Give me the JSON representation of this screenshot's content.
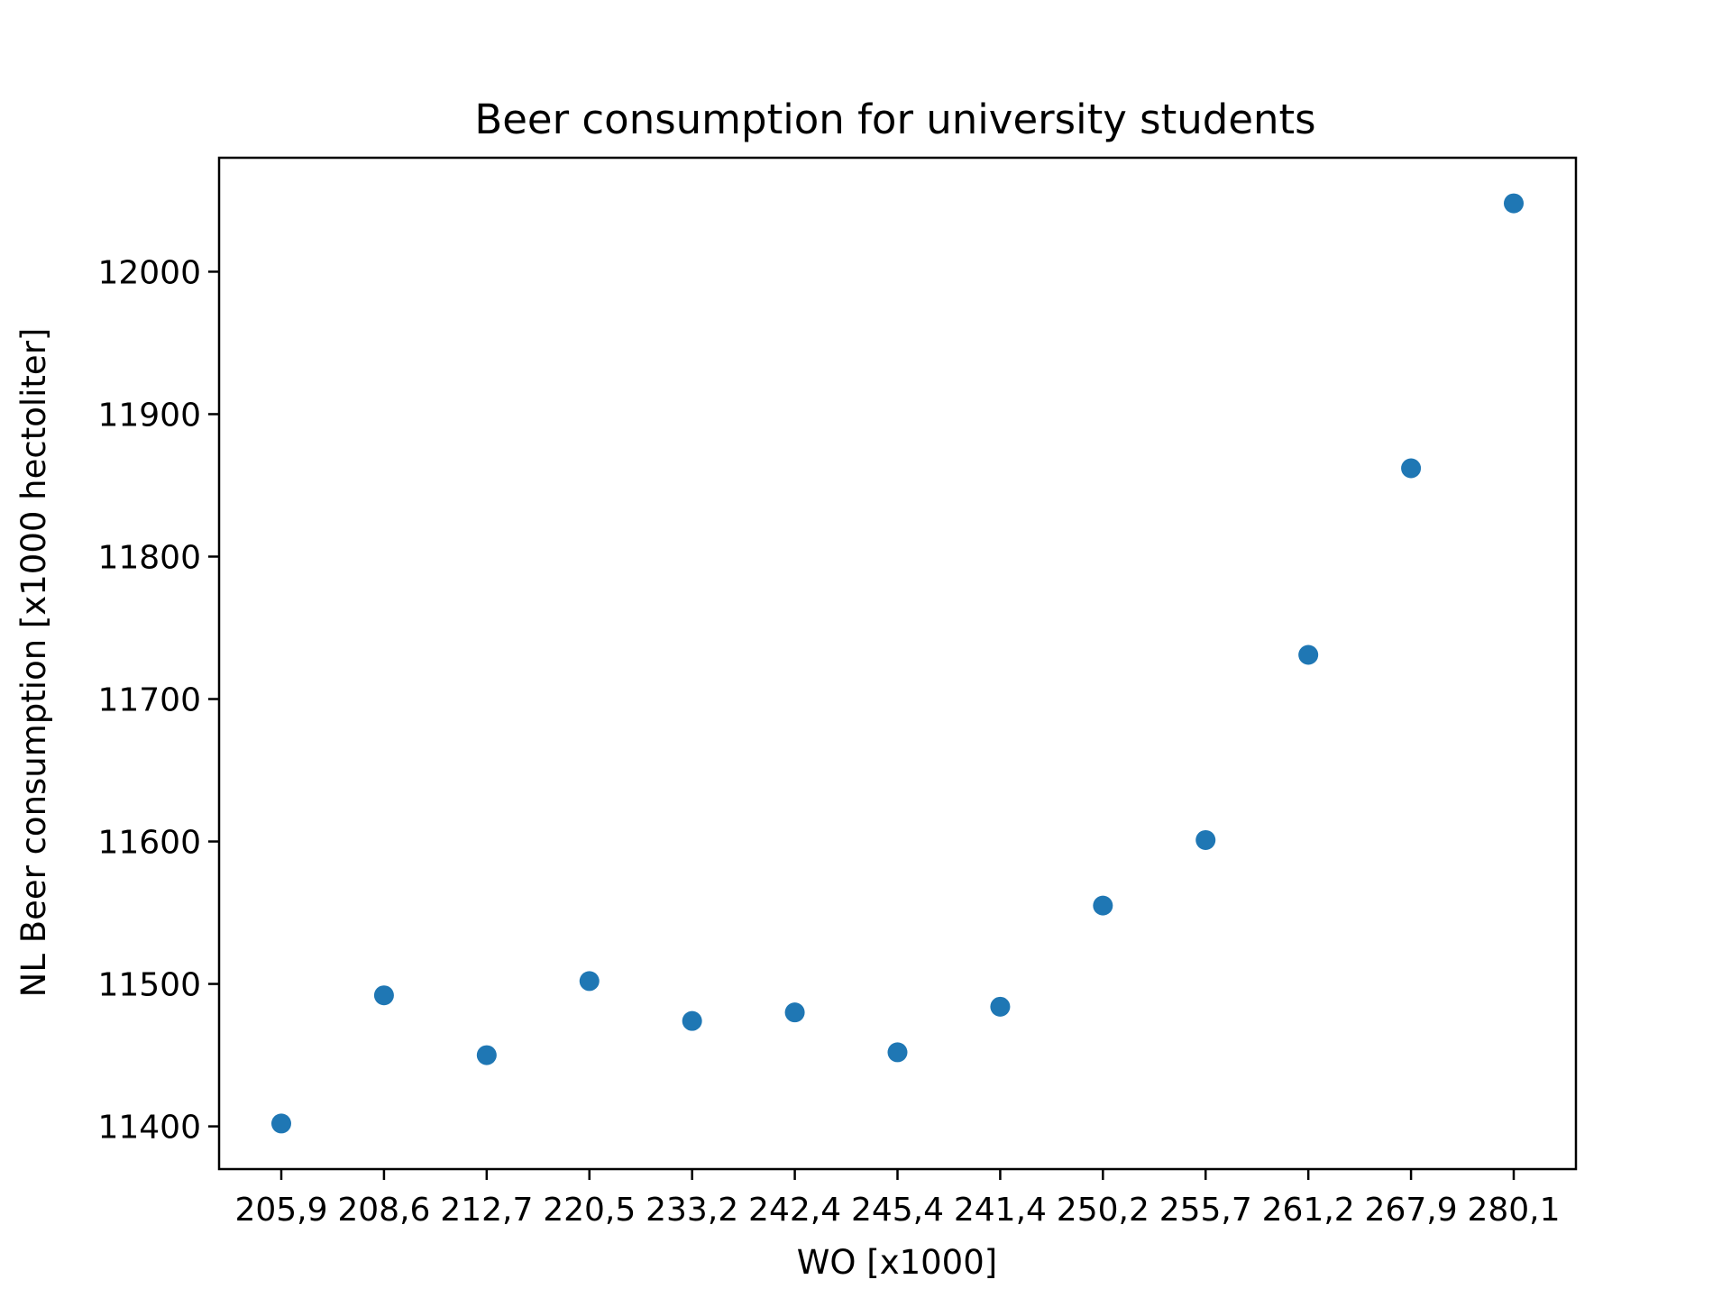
{
  "chart_data": {
    "type": "scatter",
    "title": "Beer consumption for university students",
    "xlabel": "WO [x1000]",
    "ylabel": "NL Beer consumption [x1000 hectoliter]",
    "x": [
      "205,9",
      "208,6",
      "212,7",
      "220,5",
      "233,2",
      "242,4",
      "245,4",
      "241,4",
      "250,2",
      "255,7",
      "261,2",
      "267,9",
      "280,1"
    ],
    "y": [
      11402,
      11492,
      11450,
      11502,
      11474,
      11480,
      11452,
      11484,
      11555,
      11601,
      11731,
      11862,
      12048
    ],
    "yticks": [
      11400,
      11500,
      11600,
      11700,
      11800,
      11900,
      12000
    ],
    "ylim": [
      11370,
      12080
    ],
    "grid": false,
    "legend": "none",
    "marker_color": "#1f77b4"
  }
}
